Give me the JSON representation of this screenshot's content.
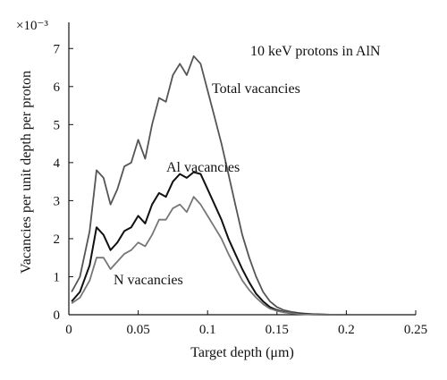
{
  "chart_data": {
    "type": "line",
    "title": "",
    "annotation": "10 keV protons in AlN",
    "xlabel": "Target depth (μm)",
    "ylabel": "Vacancies per unit depth per proton",
    "y_multiplier": "×10⁻³",
    "xlim": [
      0,
      0.25
    ],
    "ylim": [
      0,
      7.5
    ],
    "x_ticks": [
      0,
      0.05,
      0.1,
      0.15,
      0.2,
      0.25
    ],
    "x_tick_labels": [
      "0",
      "0.05",
      "0.1",
      "0.15",
      "0.2",
      "0.25"
    ],
    "y_ticks": [
      0,
      1,
      2,
      3,
      4,
      5,
      6,
      7
    ],
    "y_tick_labels": [
      "0",
      "1",
      "2",
      "3",
      "4",
      "5",
      "6",
      "7"
    ],
    "grid": false,
    "series": [
      {
        "name": "Total vacancies",
        "color": "#555555",
        "x": [
          0.002,
          0.008,
          0.015,
          0.02,
          0.025,
          0.03,
          0.035,
          0.04,
          0.045,
          0.05,
          0.055,
          0.06,
          0.065,
          0.07,
          0.075,
          0.08,
          0.085,
          0.09,
          0.095,
          0.1,
          0.105,
          0.11,
          0.115,
          0.12,
          0.125,
          0.13,
          0.135,
          0.14,
          0.145,
          0.15,
          0.155,
          0.16,
          0.165,
          0.17,
          0.175,
          0.18,
          0.185,
          0.19,
          0.195
        ],
        "y": [
          0.6,
          1.0,
          2.2,
          3.8,
          3.6,
          2.9,
          3.3,
          3.9,
          4.0,
          4.6,
          4.1,
          5.0,
          5.7,
          5.6,
          6.3,
          6.6,
          6.3,
          6.8,
          6.6,
          5.9,
          5.2,
          4.5,
          3.7,
          2.9,
          2.1,
          1.5,
          1.0,
          0.6,
          0.35,
          0.2,
          0.12,
          0.08,
          0.05,
          0.03,
          0.02,
          0.01,
          0.01,
          0.0,
          0.0
        ]
      },
      {
        "name": "Al vacancies",
        "color": "#111111",
        "x": [
          0.002,
          0.008,
          0.015,
          0.02,
          0.025,
          0.03,
          0.035,
          0.04,
          0.045,
          0.05,
          0.055,
          0.06,
          0.065,
          0.07,
          0.075,
          0.08,
          0.085,
          0.09,
          0.095,
          0.1,
          0.105,
          0.11,
          0.115,
          0.12,
          0.125,
          0.13,
          0.135,
          0.14,
          0.145,
          0.15,
          0.155,
          0.16,
          0.165,
          0.17,
          0.175,
          0.18,
          0.185,
          0.19,
          0.195
        ],
        "y": [
          0.35,
          0.6,
          1.3,
          2.3,
          2.1,
          1.7,
          1.9,
          2.2,
          2.3,
          2.6,
          2.4,
          2.9,
          3.2,
          3.1,
          3.5,
          3.7,
          3.6,
          3.75,
          3.7,
          3.3,
          2.9,
          2.5,
          2.0,
          1.6,
          1.2,
          0.85,
          0.55,
          0.35,
          0.2,
          0.12,
          0.07,
          0.04,
          0.03,
          0.02,
          0.01,
          0.01,
          0.0,
          0.0,
          0.0
        ]
      },
      {
        "name": "N vacancies",
        "color": "#777777",
        "x": [
          0.002,
          0.008,
          0.015,
          0.02,
          0.025,
          0.03,
          0.035,
          0.04,
          0.045,
          0.05,
          0.055,
          0.06,
          0.065,
          0.07,
          0.075,
          0.08,
          0.085,
          0.09,
          0.095,
          0.1,
          0.105,
          0.11,
          0.115,
          0.12,
          0.125,
          0.13,
          0.135,
          0.14,
          0.145,
          0.15,
          0.155,
          0.16,
          0.165,
          0.17,
          0.175,
          0.18,
          0.185,
          0.19,
          0.195
        ],
        "y": [
          0.3,
          0.45,
          0.9,
          1.5,
          1.5,
          1.2,
          1.4,
          1.6,
          1.7,
          1.9,
          1.8,
          2.1,
          2.5,
          2.5,
          2.8,
          2.9,
          2.7,
          3.1,
          2.9,
          2.6,
          2.3,
          2.0,
          1.6,
          1.25,
          0.9,
          0.65,
          0.45,
          0.28,
          0.16,
          0.1,
          0.06,
          0.04,
          0.02,
          0.01,
          0.01,
          0.0,
          0.0,
          0.0,
          0.0
        ]
      }
    ],
    "series_labels": [
      "Total vacancies",
      "Al vacancies",
      "N vacancies"
    ]
  }
}
